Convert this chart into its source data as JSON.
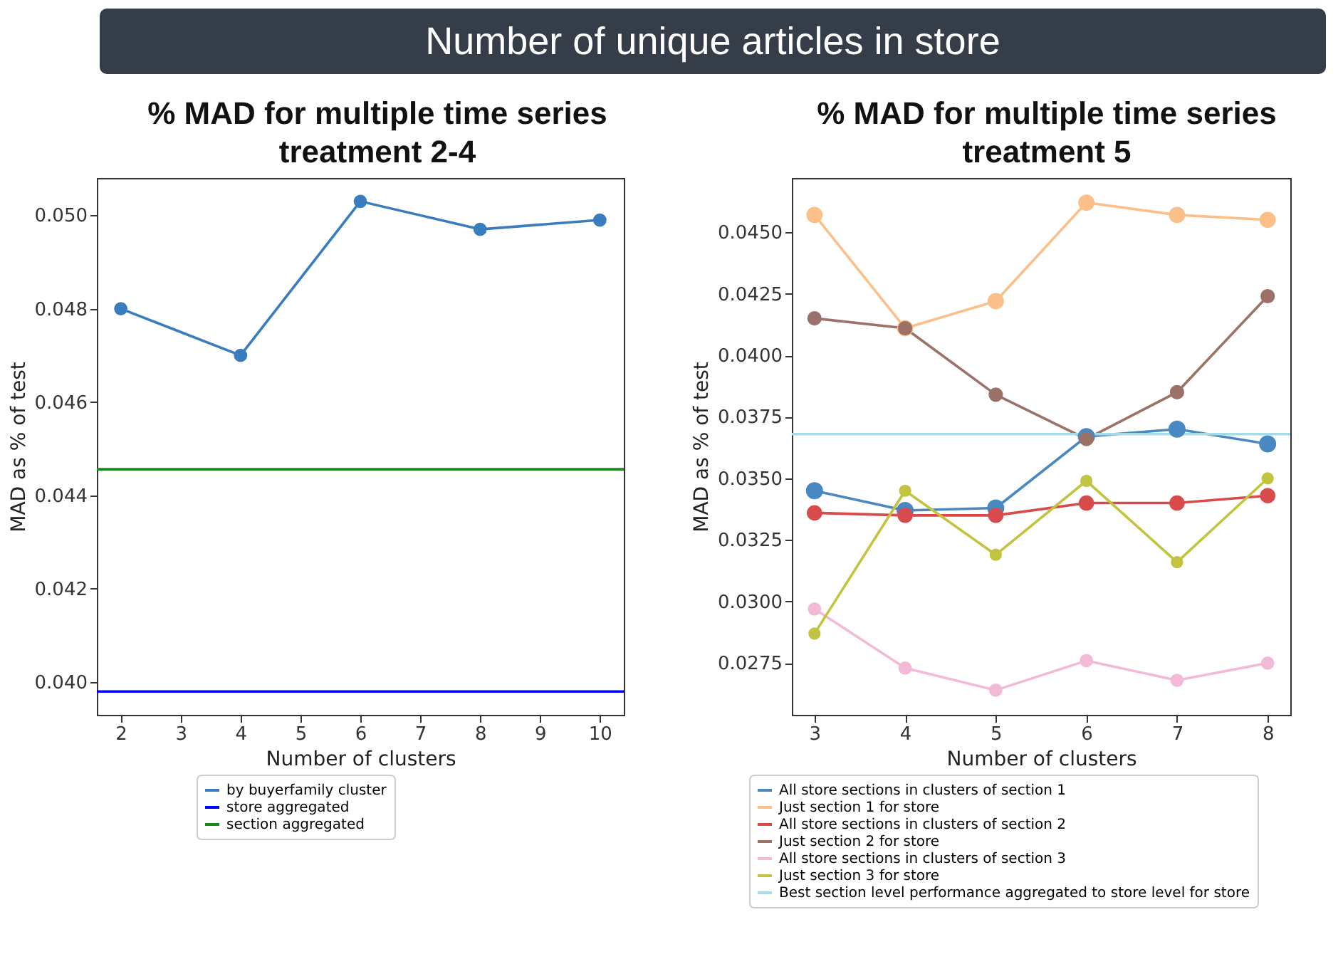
{
  "chart_data": [
    {
      "type": "other",
      "title": "Number of unique articles in store"
    },
    {
      "type": "line",
      "title": "% MAD for multiple time series treatment 2-4",
      "xlabel": "Number of clusters",
      "ylabel": "MAD as % of test",
      "xlim": [
        1.6,
        10.4
      ],
      "xticks": [
        2,
        3,
        4,
        5,
        6,
        7,
        8,
        9,
        10
      ],
      "ylim": [
        0.0393,
        0.0508
      ],
      "yticks": [
        {
          "value": 0.04,
          "label": "0.040"
        },
        0.042,
        0.044,
        0.046,
        0.048,
        {
          "value": 0.05,
          "label": "0.050"
        }
      ],
      "legend": "bottom",
      "grid": false,
      "series": [
        {
          "name": "by buyerfamily cluster",
          "color": "#3a7dbf",
          "marker": "circle",
          "x": [
            2,
            4,
            6,
            8,
            10
          ],
          "values": [
            0.048,
            0.047,
            0.0503,
            0.0497,
            0.0499
          ]
        },
        {
          "name": "store aggregated",
          "color": "#0000ff",
          "marker": "none",
          "x": [
            1.6,
            10.4
          ],
          "values": [
            0.0398,
            0.0398
          ]
        },
        {
          "name": "section aggregated",
          "color": "#1a8a1a",
          "marker": "none",
          "x": [
            1.6,
            10.4
          ],
          "values": [
            0.04456,
            0.04456
          ]
        }
      ]
    },
    {
      "type": "line",
      "title": "% MAD for multiple time series treatment 5",
      "xlabel": "Number of clusters",
      "ylabel": "MAD as % of test",
      "xlim": [
        2.75,
        8.25
      ],
      "xticks": [
        3,
        4,
        5,
        6,
        7,
        8
      ],
      "ylim": [
        0.0254,
        0.0472
      ],
      "yticks": [
        0.0275,
        {
          "value": 0.03,
          "label": "0.0300"
        },
        0.0325,
        {
          "value": 0.035,
          "label": "0.0350"
        },
        0.0375,
        {
          "value": 0.04,
          "label": "0.0400"
        },
        0.0425,
        {
          "value": 0.045,
          "label": "0.0450"
        }
      ],
      "legend": "bottom",
      "grid": false,
      "series": [
        {
          "name": "All store sections in clusters of section 1",
          "color": "#4a88c2",
          "marker": "circle",
          "x": [
            3,
            4,
            5,
            6,
            7,
            8
          ],
          "values": [
            0.0345,
            0.0337,
            0.0338,
            0.0367,
            0.037,
            0.0364
          ]
        },
        {
          "name": "Just section 1 for store",
          "color": "#fbc08a",
          "marker": "circle",
          "x": [
            3,
            4,
            5,
            6,
            7,
            8
          ],
          "values": [
            0.0457,
            0.0411,
            0.0422,
            0.0462,
            0.0457,
            0.0455
          ]
        },
        {
          "name": "All store sections in clusters of section 2",
          "color": "#d84b4b",
          "marker": "circle",
          "x": [
            3,
            4,
            5,
            6,
            7,
            8
          ],
          "values": [
            0.0336,
            0.0335,
            0.0335,
            0.034,
            0.034,
            0.0343
          ]
        },
        {
          "name": "Just section 2 for store",
          "color": "#9c7168",
          "marker": "circle",
          "x": [
            3,
            4,
            5,
            6,
            7,
            8
          ],
          "values": [
            0.0415,
            0.0411,
            0.0384,
            0.0366,
            0.0385,
            0.0424
          ]
        },
        {
          "name": "All store sections in clusters of section 3",
          "color": "#f2bad7",
          "marker": "circle",
          "x": [
            3,
            4,
            5,
            6,
            7,
            8
          ],
          "values": [
            0.0297,
            0.0273,
            0.0264,
            0.0276,
            0.0268,
            0.0275
          ]
        },
        {
          "name": "Just section 3 for store",
          "color": "#c2c43f",
          "marker": "circle",
          "x": [
            3,
            4,
            5,
            6,
            7,
            8
          ],
          "values": [
            0.0287,
            0.0345,
            0.0319,
            0.0349,
            0.0316,
            0.035
          ]
        },
        {
          "name": "Best section level performance aggregated to store level for store",
          "color": "#a6dbe8",
          "marker": "none",
          "x": [
            2.75,
            8.25
          ],
          "values": [
            0.0368,
            0.0368
          ]
        }
      ]
    }
  ]
}
